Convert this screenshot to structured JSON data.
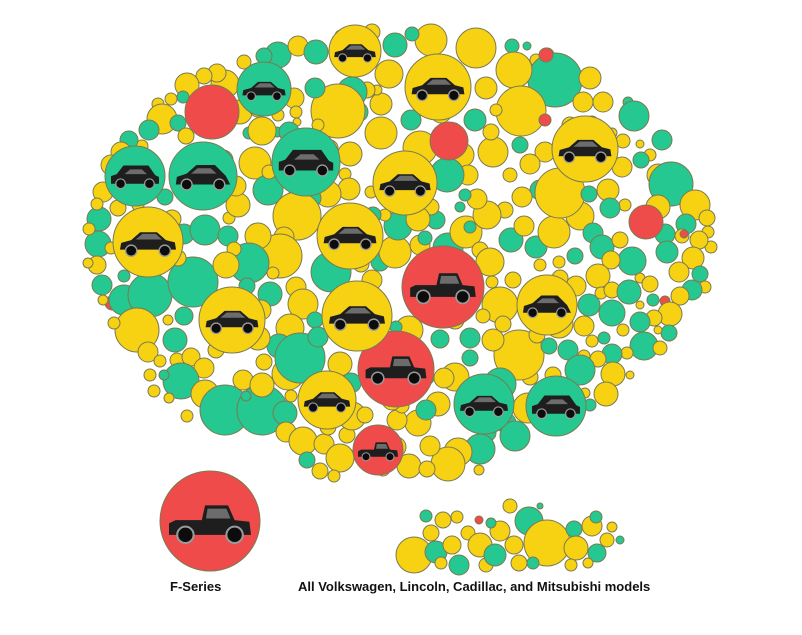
{
  "colors": {
    "red": "#EF4B4B",
    "green": "#24C890",
    "yellow": "#F7D213",
    "stroke": "#7a7a52",
    "car": "#1e1e1e"
  },
  "chart_data": {
    "type": "bubble",
    "description_source": "packed-circle chart; each circle is one vehicle model, colored by category; photos of vehicles inside the largest circles",
    "categories": [
      "red",
      "green",
      "yellow"
    ],
    "featured_vehicles": [
      {
        "color": "red",
        "vehicle": "pickup"
      },
      {
        "color": "red",
        "vehicle": "pickup"
      },
      {
        "color": "red",
        "vehicle": "pickup"
      },
      {
        "color": "green",
        "vehicle": "sedan"
      },
      {
        "color": "green",
        "vehicle": "suv"
      },
      {
        "color": "green",
        "vehicle": "hatchback"
      },
      {
        "color": "green",
        "vehicle": "suv"
      },
      {
        "color": "green",
        "vehicle": "sedan"
      },
      {
        "color": "green",
        "vehicle": "suv"
      },
      {
        "color": "yellow",
        "vehicle": "sedan"
      },
      {
        "color": "yellow",
        "vehicle": "sedan"
      },
      {
        "color": "yellow",
        "vehicle": "sedan"
      },
      {
        "color": "yellow",
        "vehicle": "sedan"
      },
      {
        "color": "yellow",
        "vehicle": "sedan"
      },
      {
        "color": "yellow",
        "vehicle": "sedan"
      },
      {
        "color": "yellow",
        "vehicle": "sedan"
      },
      {
        "color": "yellow",
        "vehicle": "sedan"
      },
      {
        "color": "yellow",
        "vehicle": "hatchback"
      },
      {
        "color": "yellow",
        "vehicle": "sedan"
      },
      {
        "color": "yellow",
        "vehicle": "sedan"
      }
    ],
    "comparisons": [
      {
        "label": "F-Series",
        "color": "red",
        "vehicle": "pickup"
      },
      {
        "label": "All Volkswagen, Lincoln, Cadillac, and Mitsubishi models",
        "color": "mixed"
      }
    ]
  },
  "labels": {
    "fseries": "F-Series",
    "group": "All Volkswagen, Lincoln, Cadillac, and Mitsubishi models"
  }
}
